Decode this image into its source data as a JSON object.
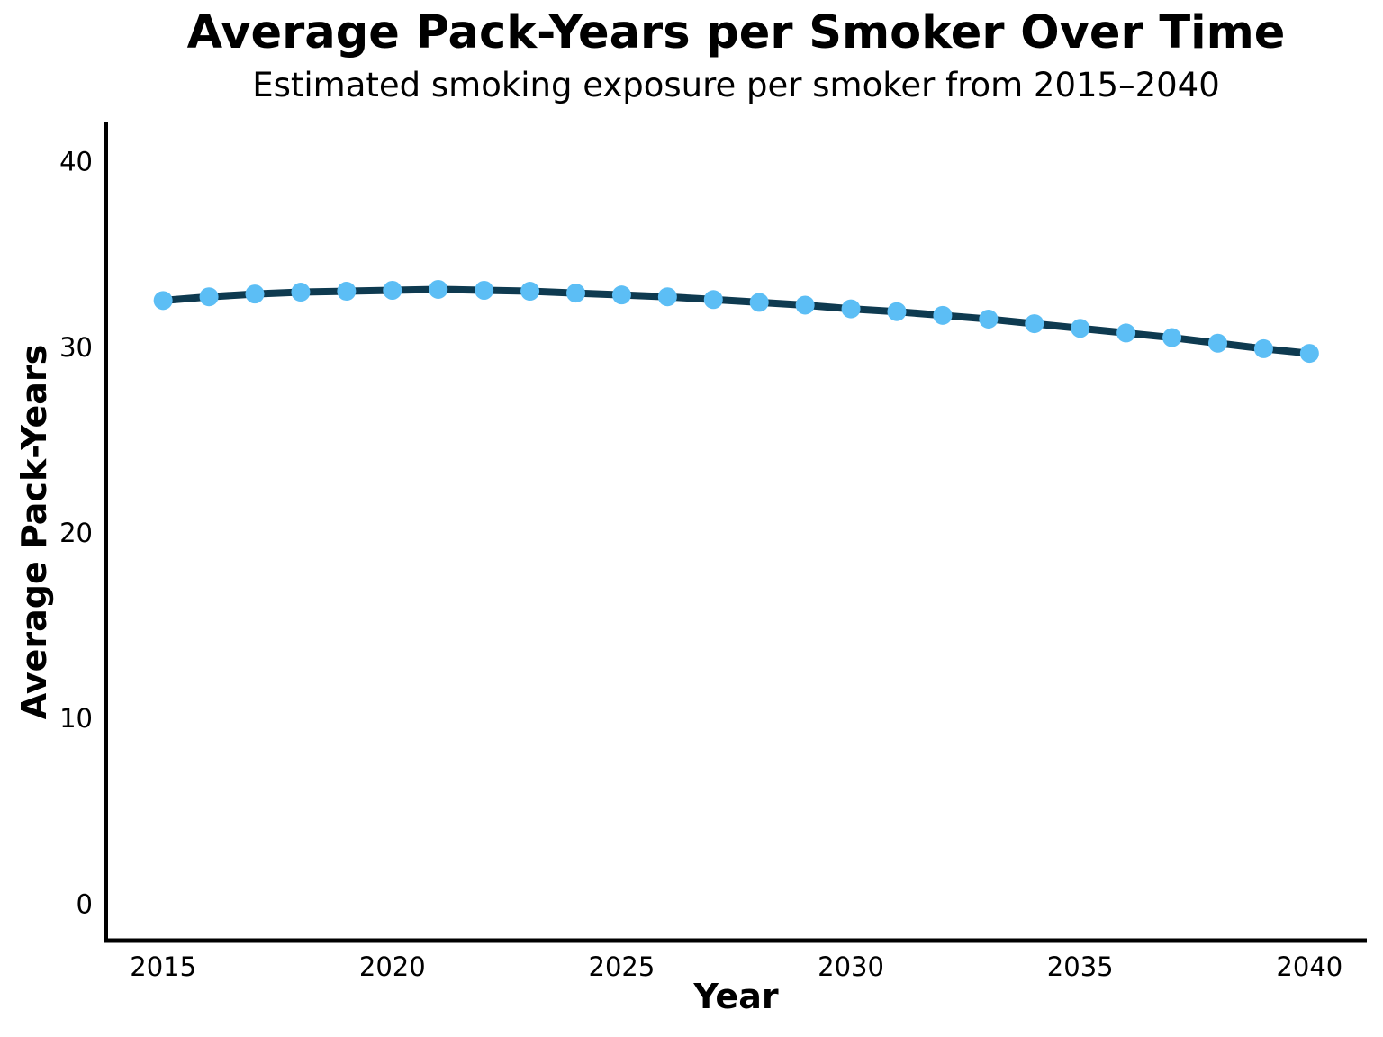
{
  "chart_data": {
    "type": "line",
    "title": "Average Pack-Years per Smoker Over Time",
    "subtitle": "Estimated smoking exposure per smoker from 2015–2040",
    "xlabel": "Year",
    "ylabel": "Average Pack-Years",
    "x": [
      2015,
      2016,
      2017,
      2018,
      2019,
      2020,
      2021,
      2022,
      2023,
      2024,
      2025,
      2026,
      2027,
      2028,
      2029,
      2030,
      2031,
      2032,
      2033,
      2034,
      2035,
      2036,
      2037,
      2038,
      2039,
      2040
    ],
    "values": [
      32.5,
      32.7,
      32.85,
      32.95,
      33.0,
      33.05,
      33.1,
      33.05,
      33.0,
      32.9,
      32.8,
      32.7,
      32.55,
      32.4,
      32.25,
      32.05,
      31.9,
      31.7,
      31.5,
      31.25,
      31.0,
      30.75,
      30.5,
      30.2,
      29.9,
      29.65
    ],
    "xticks": [
      2015,
      2020,
      2025,
      2030,
      2035,
      2040
    ],
    "yticks": [
      0,
      10,
      20,
      30,
      40
    ],
    "xlim": [
      2013.75,
      2041.25
    ],
    "ylim": [
      -2,
      42
    ],
    "grid": false,
    "legend": null,
    "line_color": "#0E3A50",
    "marker_color": "#5CBEF5",
    "spine_color": "#000000",
    "line_width": 8,
    "marker_diameter": 21
  }
}
